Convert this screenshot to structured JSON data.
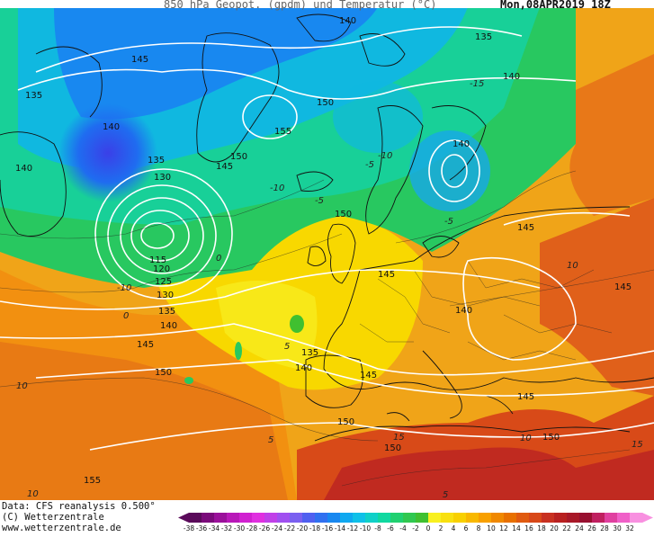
{
  "header": {
    "title": "850 hPa Geopot. (gpdm) und Temperatur (°C)",
    "datetime": "Mon,08APR2019 18Z"
  },
  "footer": {
    "data_line": "Data: CFS reanalysis 0.500°",
    "copyright": "(C) Wetterzentrale",
    "url": "www.wetterzentrale.de"
  },
  "legend": {
    "ticks": [
      "-38",
      "-36",
      "-34",
      "-32",
      "-30",
      "-28",
      "-26",
      "-24",
      "-22",
      "-20",
      "-18",
      "-16",
      "-14",
      "-12",
      "-10",
      "-8",
      "-6",
      "-4",
      "-2",
      "0",
      "2",
      "4",
      "6",
      "8",
      "10",
      "12",
      "14",
      "16",
      "18",
      "20",
      "22",
      "24",
      "26",
      "28",
      "30",
      "32"
    ],
    "colors": [
      "#5a0a5a",
      "#7a0a7a",
      "#9a109a",
      "#b818b8",
      "#d020d0",
      "#e030e0",
      "#c040e8",
      "#a050f0",
      "#7a60f0",
      "#5060f0",
      "#3070f0",
      "#1888f0",
      "#10a8f0",
      "#10c0e8",
      "#10d0c8",
      "#10d8a0",
      "#20d070",
      "#30c850",
      "#40c030",
      "#f8f020",
      "#f8e010",
      "#f8d000",
      "#f8b800",
      "#f8a000",
      "#f08800",
      "#e87000",
      "#e05a10",
      "#d84818",
      "#c83020",
      "#b82020",
      "#a81828",
      "#981030",
      "#c02060",
      "#e040a0",
      "#f060c8",
      "#f890e0"
    ]
  },
  "contour_labels": {
    "geopotential": [
      "140",
      "135",
      "145",
      "135",
      "140",
      "150",
      "155",
      "150",
      "145",
      "140",
      "135",
      "130",
      "115",
      "120",
      "125",
      "130",
      "135",
      "140",
      "145",
      "150",
      "140",
      "135",
      "140",
      "145",
      "150",
      "145",
      "140",
      "145",
      "150",
      "150",
      "155",
      "150",
      "145",
      "145",
      "140"
    ],
    "temperature": [
      "-15",
      "-10",
      "-5",
      "-10",
      "-5",
      "0",
      "5",
      "-10",
      "-5",
      "0",
      "10",
      "5",
      "10",
      "15",
      "10",
      "5",
      "10",
      "15"
    ]
  }
}
